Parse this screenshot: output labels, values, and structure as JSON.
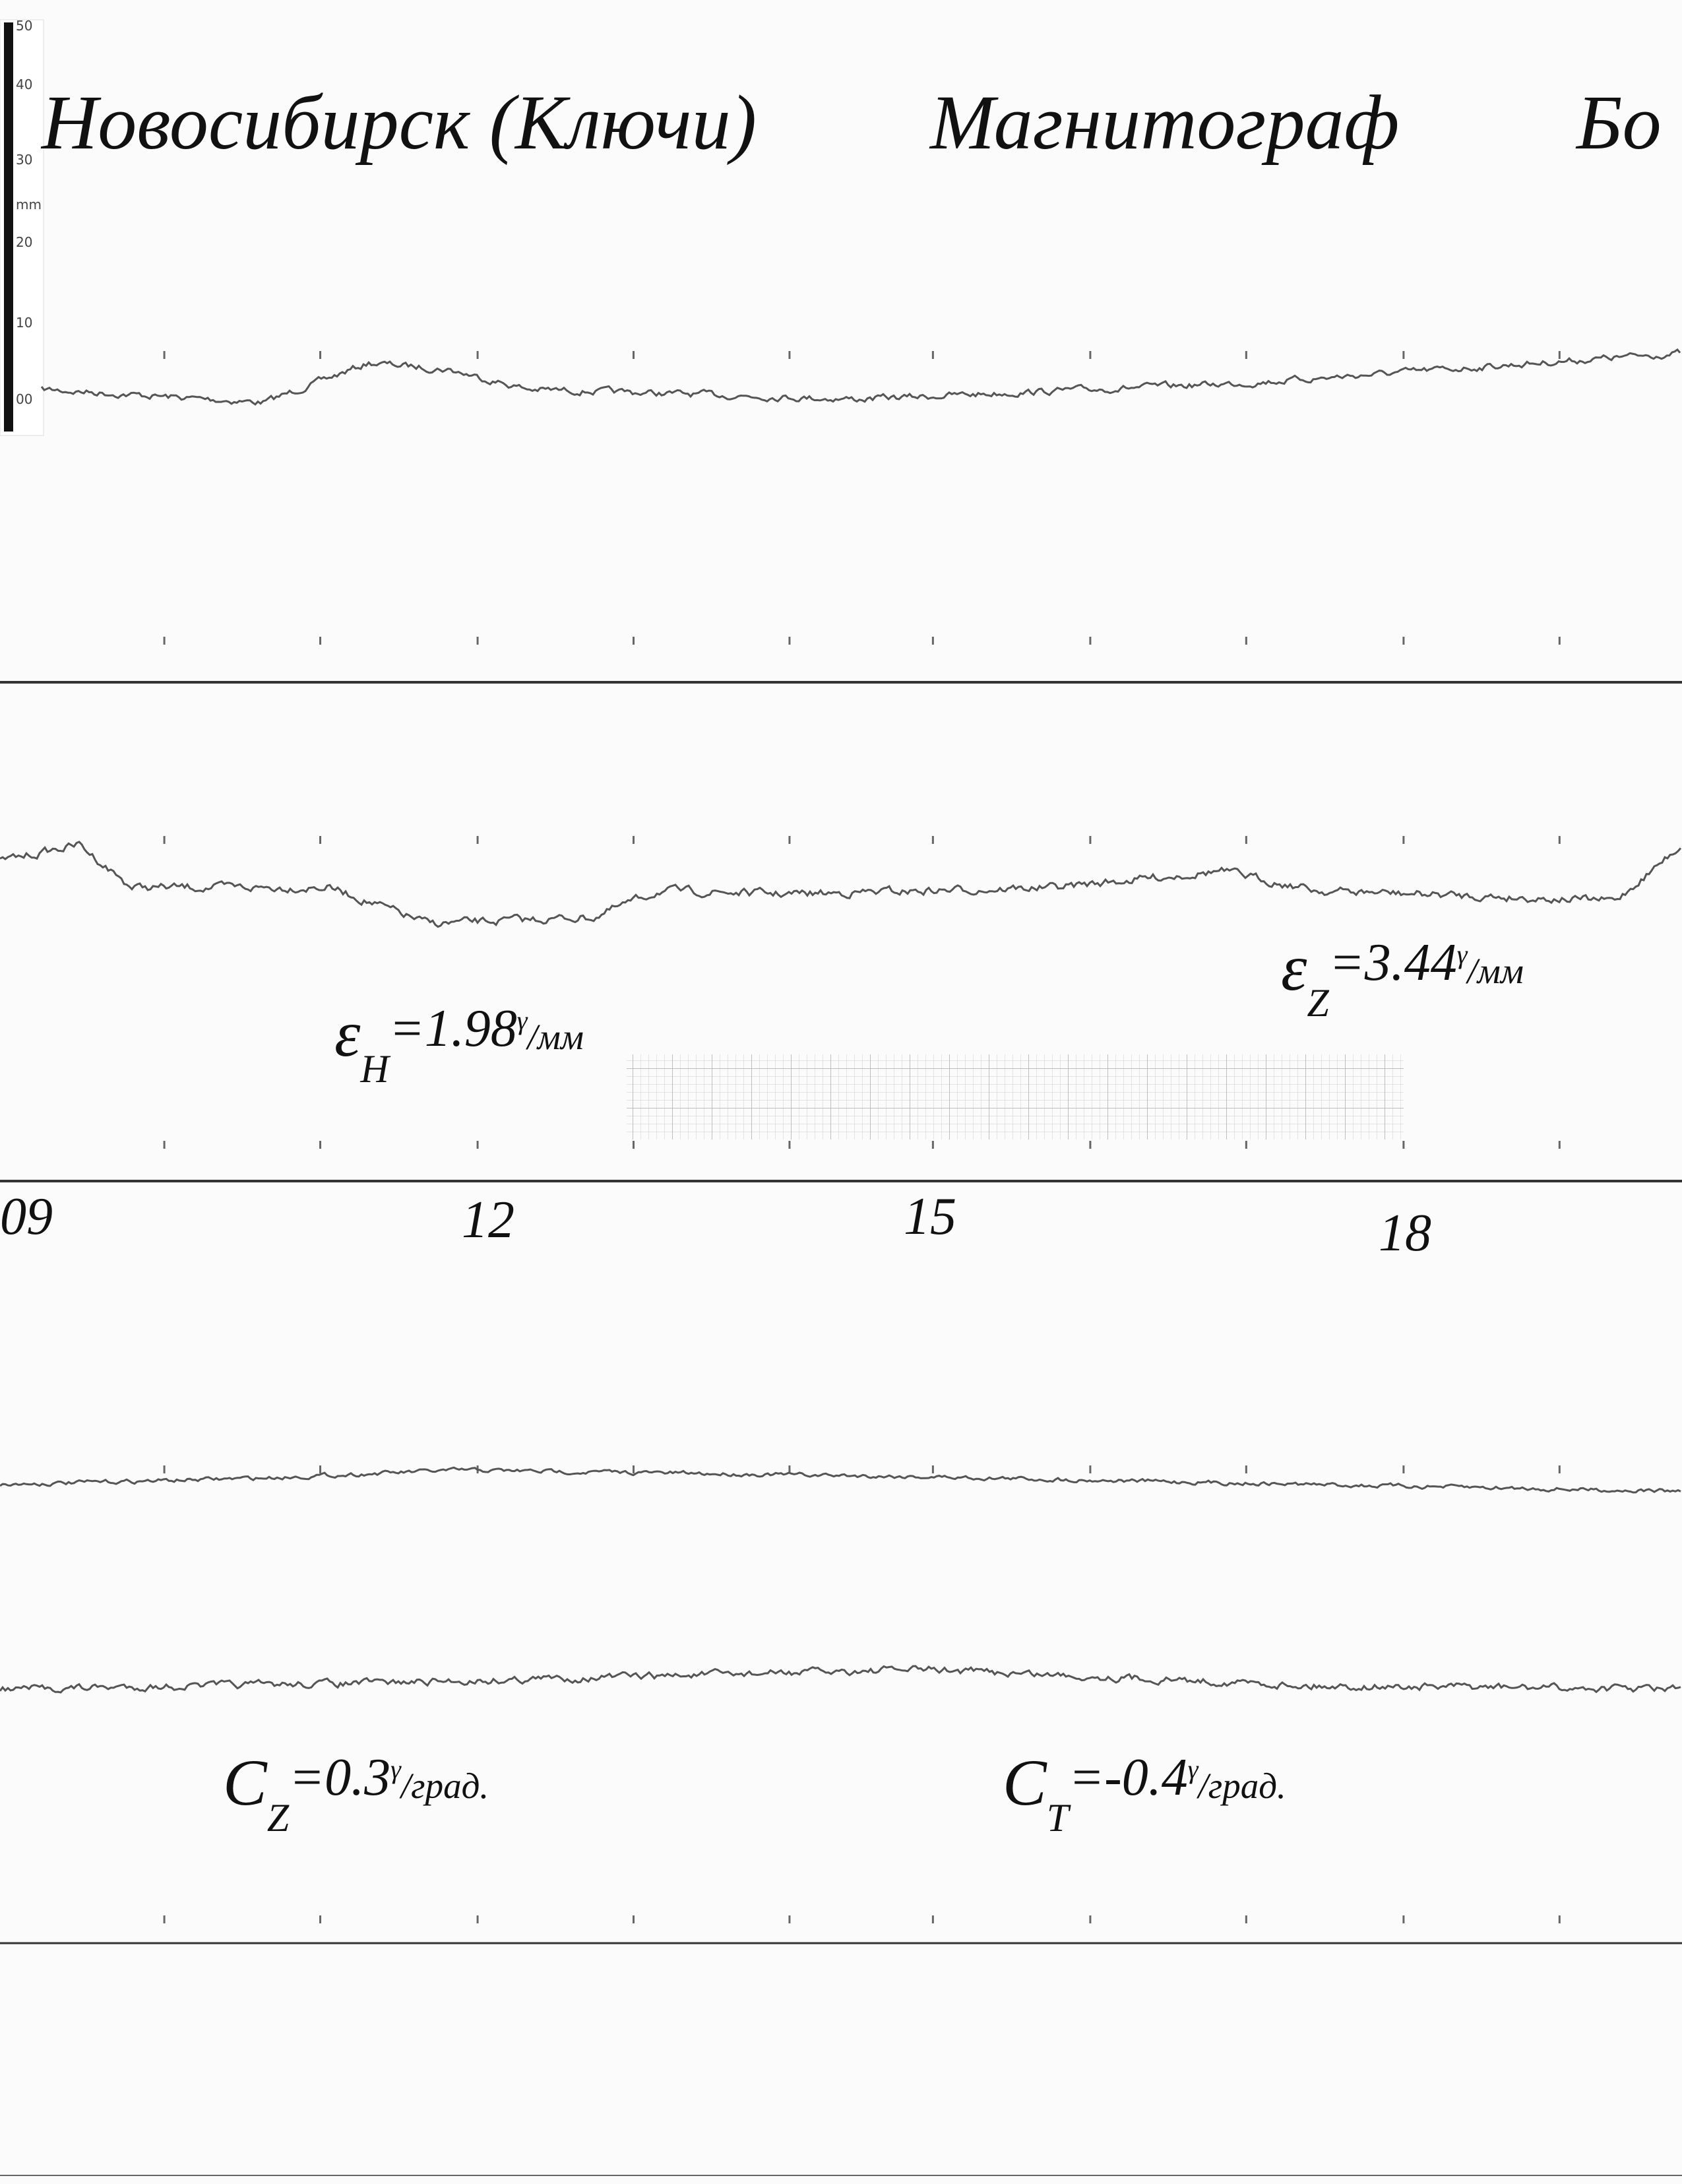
{
  "header": {
    "title": "Новосибирск (Ключи)",
    "instrument": "Магнитограф",
    "cut_word": "Бо"
  },
  "ruler": {
    "labels": [
      "50",
      "40",
      "30",
      "mm",
      "20",
      "10",
      "00"
    ]
  },
  "hours": [
    "09",
    "12",
    "15",
    "18"
  ],
  "constants": [
    {
      "symbol": "ε",
      "subscript": "H",
      "value": "=1.98",
      "sup": "γ",
      "unit": "/мм"
    },
    {
      "symbol": "ε",
      "subscript": "Z",
      "value": "=3.44",
      "sup": "γ",
      "unit": "/мм"
    },
    {
      "symbol": "C",
      "subscript": "Z",
      "value": "=0.3",
      "sup": "γ",
      "unit": "/град."
    },
    {
      "symbol": "C",
      "subscript": "T",
      "value": "=-0.4",
      "sup": "γ",
      "unit": "/град."
    }
  ]
}
